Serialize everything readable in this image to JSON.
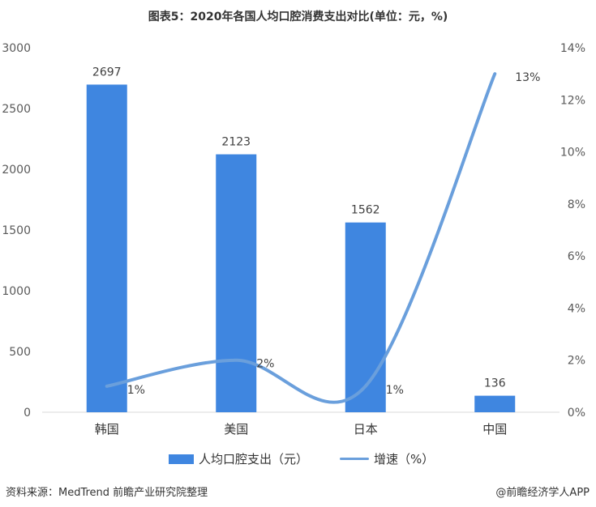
{
  "title": "图表5：2020年各国人均口腔消费支出对比(单位：元，%)",
  "footer": {
    "source": "资料来源：MedTrend 前瞻产业研究院整理",
    "credit": "@前瞻经济学人APP"
  },
  "colors": {
    "bar": "#3f86e0",
    "line": "#6a9fdc"
  },
  "chart_data": {
    "type": "bar",
    "categories": [
      "韩国",
      "美国",
      "日本",
      "中国"
    ],
    "series": [
      {
        "name": "人均口腔支出（元）",
        "type": "bar",
        "axis": "left",
        "values": [
          2697,
          2123,
          1562,
          136
        ],
        "labels": [
          "2697",
          "2123",
          "1562",
          "136"
        ]
      },
      {
        "name": "增速（%）",
        "type": "line",
        "axis": "right",
        "smooth": true,
        "values": [
          1,
          2,
          1,
          13
        ],
        "labels": [
          "1%",
          "2%",
          "1%",
          "13%"
        ]
      }
    ],
    "y_left": {
      "range": [
        0,
        3000
      ],
      "ticks": [
        "0",
        "500",
        "1000",
        "1500",
        "2000",
        "2500",
        "3000"
      ]
    },
    "y_right": {
      "range": [
        0,
        14
      ],
      "ticks": [
        "0%",
        "2%",
        "4%",
        "6%",
        "8%",
        "10%",
        "12%",
        "14%"
      ]
    },
    "grid": false,
    "legend": "bottom"
  }
}
